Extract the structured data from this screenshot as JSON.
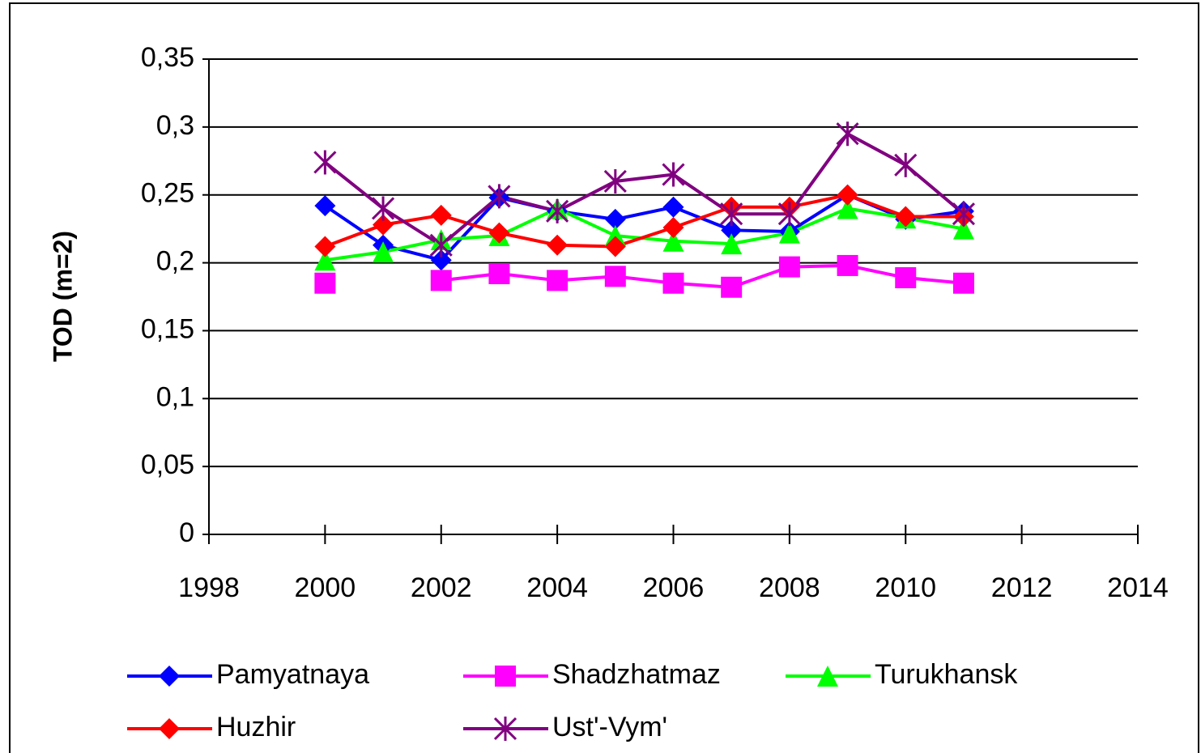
{
  "chart_data": {
    "type": "line",
    "y_label": "TOD (m=2)",
    "x": [
      2000,
      2001,
      2002,
      2003,
      2004,
      2005,
      2006,
      2007,
      2008,
      2009,
      2010,
      2011
    ],
    "xlim": [
      1998,
      2014
    ],
    "xticks": [
      1998,
      2000,
      2002,
      2004,
      2006,
      2008,
      2010,
      2012,
      2014
    ],
    "ylim": [
      0,
      0.35
    ],
    "yticks": [
      0,
      {
        "value": 0.05,
        "label": "0,05"
      },
      {
        "value": 0.1,
        "label": "0,1"
      },
      {
        "value": 0.15,
        "label": "0,15"
      },
      {
        "value": 0.2,
        "label": "0,2"
      },
      {
        "value": 0.25,
        "label": "0,25"
      },
      {
        "value": 0.3,
        "label": "0,3"
      },
      {
        "value": 0.35,
        "label": "0,35"
      }
    ],
    "grid": true,
    "legend": "bottom",
    "series": [
      {
        "name": "Pamyatnaya",
        "color": "#0000ff",
        "marker": "diamond",
        "values": [
          0.242,
          0.213,
          0.202,
          0.248,
          0.238,
          0.232,
          0.241,
          0.224,
          0.223,
          0.25,
          0.232,
          0.238
        ]
      },
      {
        "name": "Shadzhatmaz",
        "color": "#ff00ff",
        "marker": "square",
        "values": [
          0.185,
          null,
          0.187,
          0.192,
          0.187,
          0.19,
          0.185,
          0.182,
          0.197,
          0.198,
          0.189,
          0.185
        ]
      },
      {
        "name": "Turukhansk",
        "color": "#00ff00",
        "marker": "triangle",
        "values": [
          0.202,
          0.208,
          0.217,
          0.22,
          0.24,
          0.22,
          0.216,
          0.214,
          0.222,
          0.24,
          0.233,
          0.225
        ]
      },
      {
        "name": "Huzhir",
        "color": "#ff0000",
        "marker": "diamond",
        "values": [
          0.212,
          0.228,
          0.235,
          0.222,
          0.213,
          0.212,
          0.226,
          0.241,
          0.241,
          0.25,
          0.234,
          0.234
        ]
      },
      {
        "name": "Ust'-Vym'",
        "color": "#800080",
        "marker": "star",
        "values": [
          0.274,
          0.24,
          0.213,
          0.249,
          0.238,
          0.26,
          0.265,
          0.236,
          0.236,
          0.295,
          0.272,
          0.236
        ]
      }
    ]
  }
}
